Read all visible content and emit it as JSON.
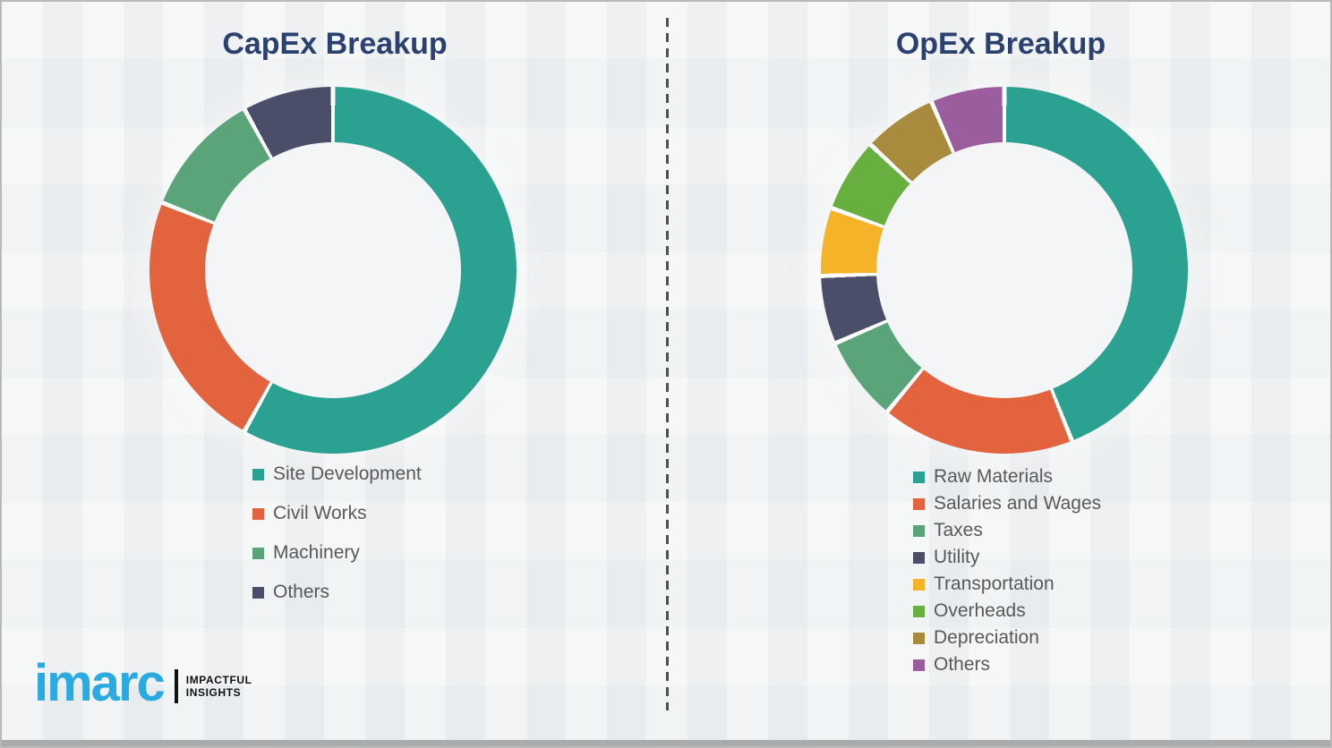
{
  "page": {
    "background_color": "#eff1f2",
    "divider_style": "vertical-dashed-line"
  },
  "titles_color": "#2b4170",
  "legend_text_color": "#595959",
  "slice_gap_color": "#fbfcfc",
  "donut_hole_color": "#f3f5f6",
  "chart_data": [
    {
      "type": "donut",
      "title": "CapEx Breakup",
      "labels": [
        "Site Development",
        "Civil Works",
        "Machinery",
        "Others"
      ],
      "values": [
        58,
        23,
        11,
        8
      ],
      "colors": [
        "#2aa191",
        "#e2633d",
        "#5ba479",
        "#4a4e68"
      ],
      "start_angle_deg": 0,
      "direction": "clockwise",
      "legend_position": "below-chart-left"
    },
    {
      "type": "donut",
      "title": "OpEx Breakup",
      "labels": [
        "Raw Materials",
        "Salaries and Wages",
        "Taxes",
        "Utility",
        "Transportation",
        "Overheads",
        "Depreciation",
        "Others"
      ],
      "values": [
        44,
        17,
        7.5,
        6,
        6,
        6.5,
        6.5,
        6.5
      ],
      "colors": [
        "#2aa191",
        "#e2633d",
        "#5ba479",
        "#4a4e68",
        "#f5b32a",
        "#67b040",
        "#a98b3d",
        "#9c5d9e"
      ],
      "start_angle_deg": 0,
      "direction": "clockwise",
      "legend_position": "below-chart-left"
    }
  ],
  "logo": {
    "wordmark": "imarc",
    "wordmark_color": "#29aae1",
    "tagline_lines": [
      "IMPACTFUL",
      "INSIGHTS"
    ],
    "tagline_color": "#111111"
  }
}
